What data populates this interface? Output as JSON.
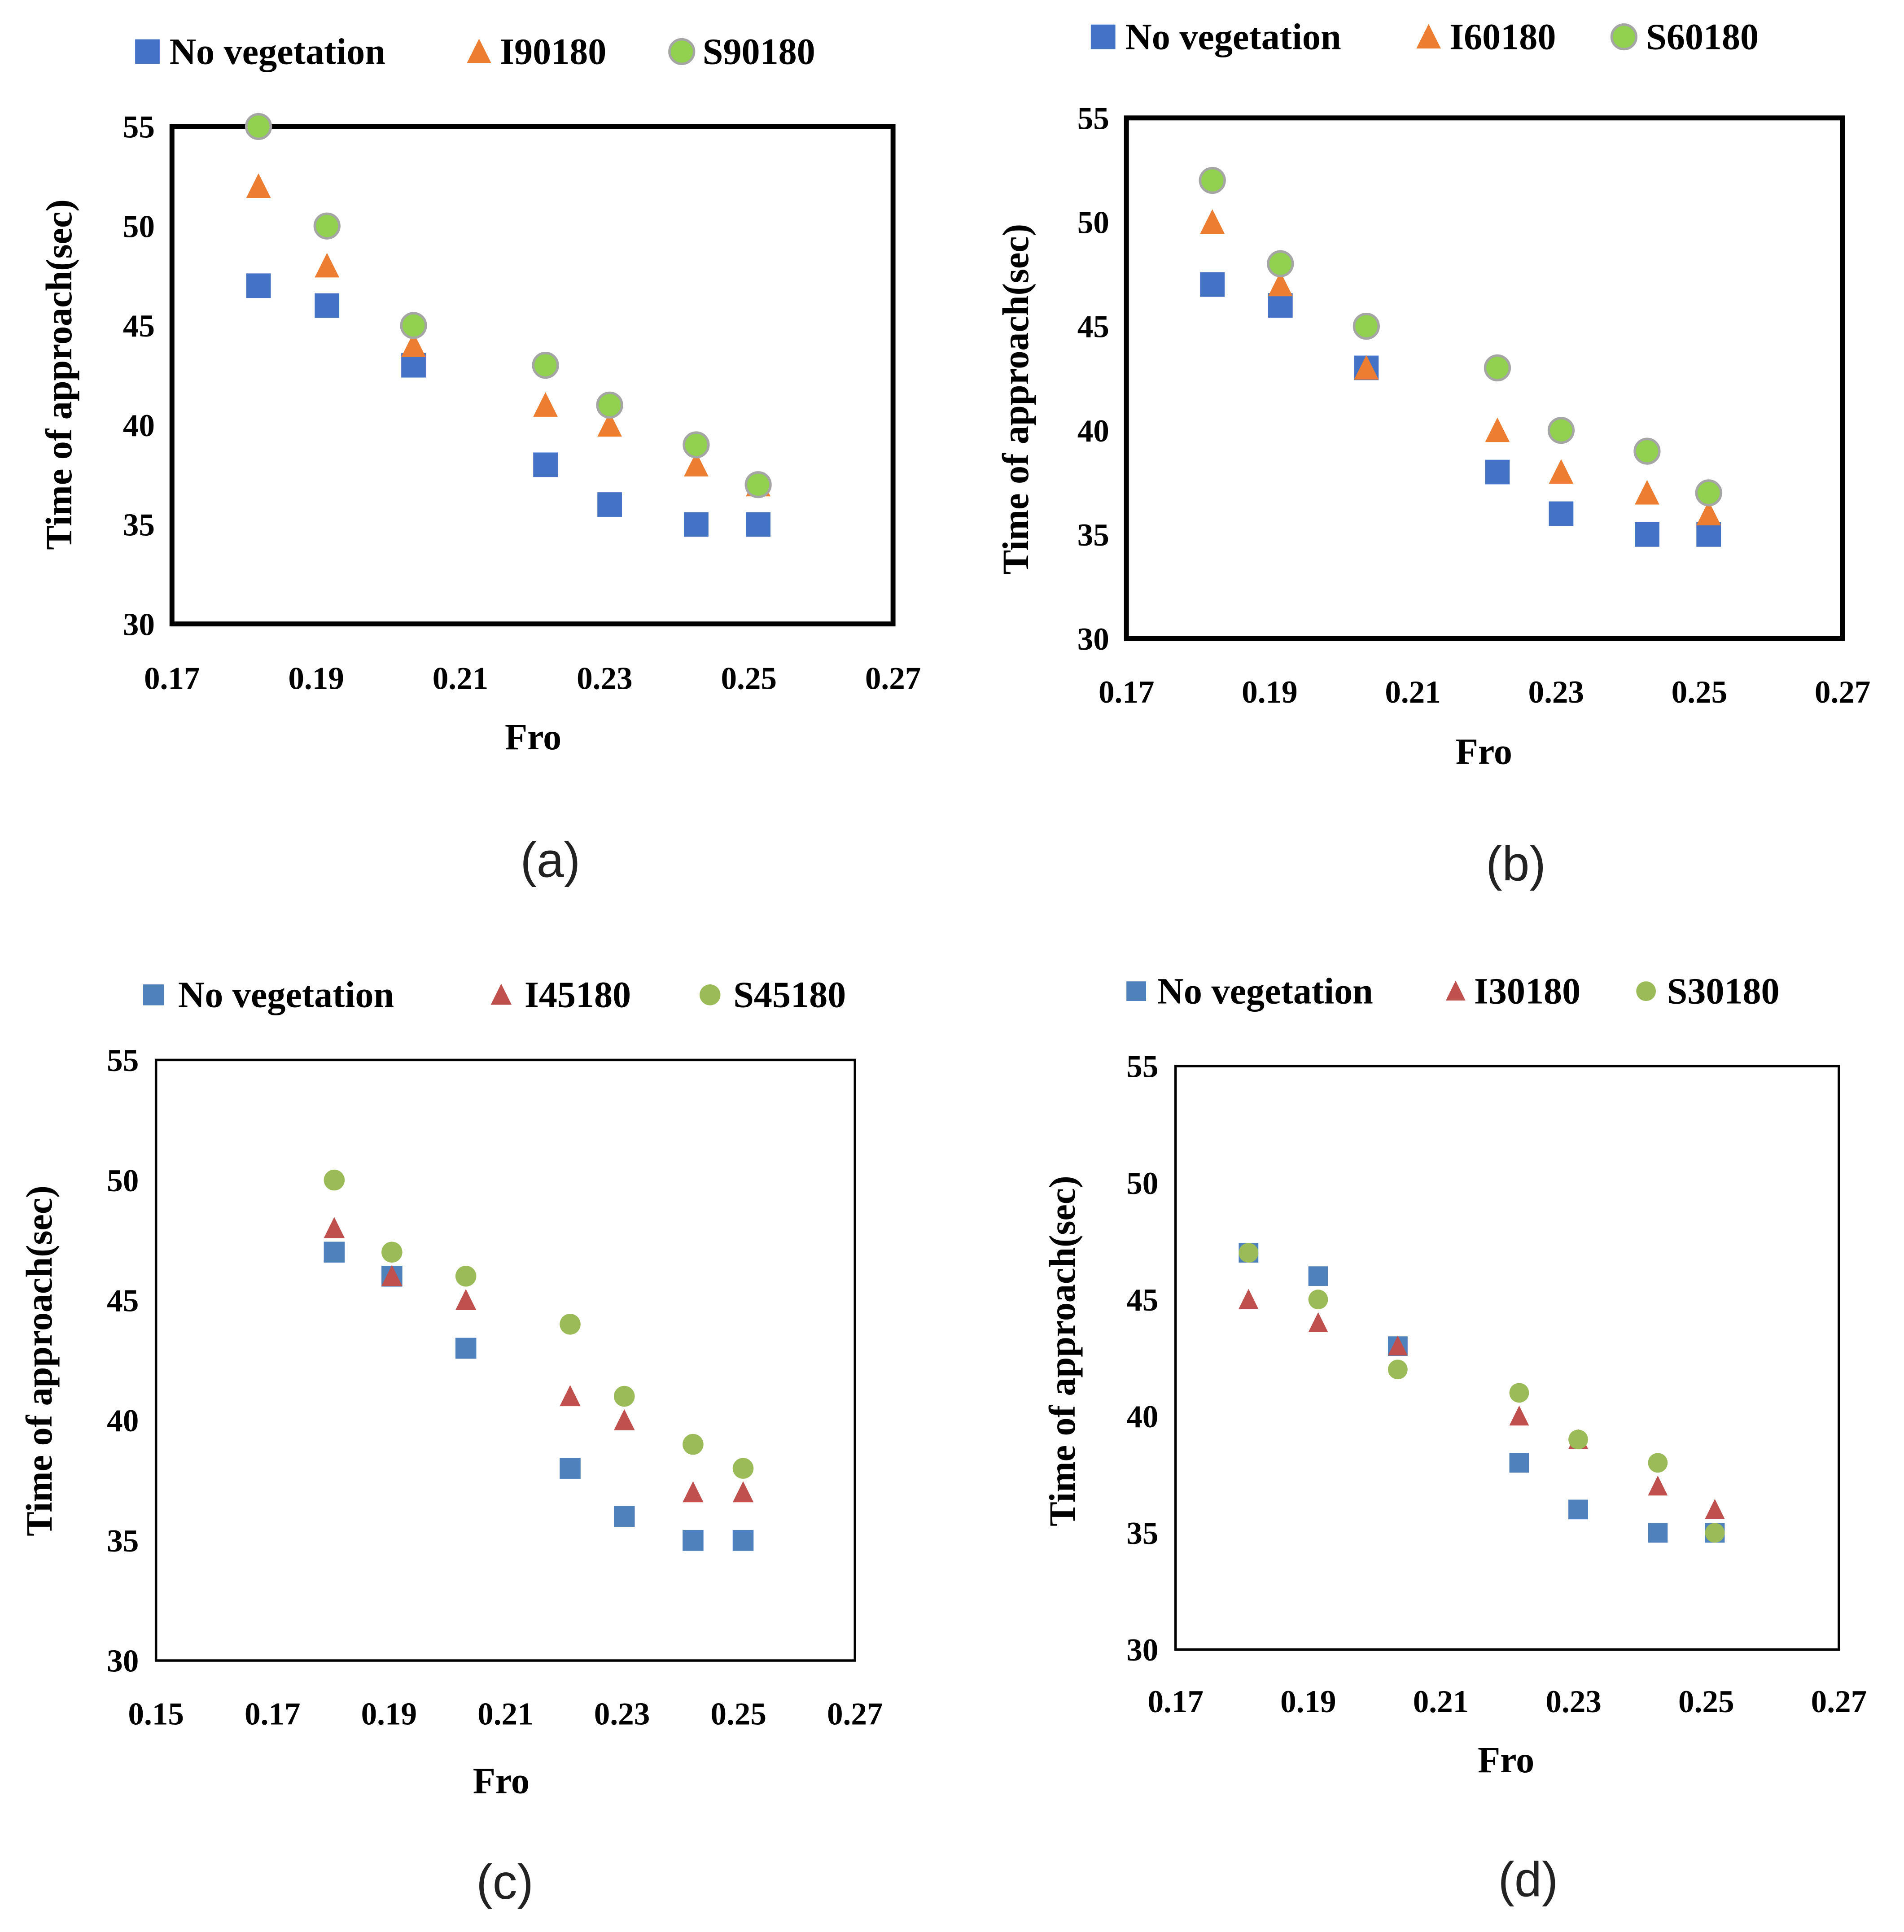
{
  "chart_data": [
    {
      "type": "scatter",
      "caption": "(a)",
      "xlabel": "Fro",
      "ylabel": "Time of approach(sec)",
      "xlim": [
        0.17,
        0.27
      ],
      "ylim": [
        30,
        55
      ],
      "xticks": [
        "0.17",
        "0.19",
        "0.21",
        "0.23",
        "0.25",
        "0.27"
      ],
      "yticks": [
        "30",
        "35",
        "40",
        "45",
        "50",
        "55"
      ],
      "xtick_values": [
        0.17,
        0.19,
        0.21,
        0.23,
        0.25,
        0.27
      ],
      "ytick_values": [
        30,
        35,
        40,
        45,
        50,
        55
      ],
      "x": [
        0.182,
        0.1915,
        0.2035,
        0.2218,
        0.2307,
        0.2427,
        0.2513
      ],
      "series": [
        {
          "name": "No vegetation",
          "marker": "square",
          "color": "#4472C4",
          "values": [
            47,
            46,
            43,
            38,
            36,
            35,
            35
          ]
        },
        {
          "name": "I90180",
          "marker": "triangle",
          "color": "#ED7D31",
          "values": [
            52,
            48,
            44,
            41,
            40,
            38,
            37
          ]
        },
        {
          "name": "S90180",
          "marker": "circle",
          "color": "#92D050",
          "values": [
            55,
            50,
            45,
            43,
            41,
            39,
            37
          ]
        }
      ],
      "legend": "top"
    },
    {
      "type": "scatter",
      "caption": "(b)",
      "xlabel": "Fro",
      "ylabel": "Time of approach(sec)",
      "xlim": [
        0.17,
        0.27
      ],
      "ylim": [
        30,
        55
      ],
      "xticks": [
        "0.17",
        "0.19",
        "0.21",
        "0.23",
        "0.25",
        "0.27"
      ],
      "yticks": [
        "30",
        "35",
        "40",
        "45",
        "50",
        "55"
      ],
      "xtick_values": [
        0.17,
        0.19,
        0.21,
        0.23,
        0.25,
        0.27
      ],
      "ytick_values": [
        30,
        35,
        40,
        45,
        50,
        55
      ],
      "x": [
        0.182,
        0.1915,
        0.2035,
        0.2218,
        0.2307,
        0.2427,
        0.2513
      ],
      "series": [
        {
          "name": "No vegetation",
          "marker": "square",
          "color": "#4472C4",
          "values": [
            47,
            46,
            43,
            38,
            36,
            35,
            35
          ]
        },
        {
          "name": "I60180",
          "marker": "triangle",
          "color": "#ED7D31",
          "values": [
            50,
            47,
            43,
            40,
            38,
            37,
            36
          ]
        },
        {
          "name": "S60180",
          "marker": "circle",
          "color": "#92D050",
          "values": [
            52,
            48,
            45,
            43,
            40,
            39,
            37
          ]
        }
      ],
      "legend": "top"
    },
    {
      "type": "scatter",
      "caption": "(c)",
      "xlabel": "Fro",
      "ylabel": "Time of approach(sec)",
      "xlim": [
        0.15,
        0.27
      ],
      "ylim": [
        30,
        55
      ],
      "xticks": [
        "0.15",
        "0.17",
        "0.19",
        "0.21",
        "0.23",
        "0.25",
        "0.27"
      ],
      "yticks": [
        "30",
        "35",
        "40",
        "45",
        "50",
        "55"
      ],
      "xtick_values": [
        0.15,
        0.17,
        0.19,
        0.21,
        0.23,
        0.25,
        0.27
      ],
      "ytick_values": [
        30,
        35,
        40,
        45,
        50,
        55
      ],
      "x": [
        0.1806,
        0.1905,
        0.2032,
        0.2211,
        0.2304,
        0.2422,
        0.2508
      ],
      "series": [
        {
          "name": "No vegetation",
          "marker": "square",
          "color": "#4F81BD",
          "values": [
            47,
            46,
            43,
            38,
            36,
            35,
            35
          ]
        },
        {
          "name": "I45180",
          "marker": "triangle",
          "color": "#C0504D",
          "values": [
            48,
            46,
            45,
            41,
            40,
            37,
            37
          ]
        },
        {
          "name": "S45180",
          "marker": "circle",
          "color": "#9BBB59",
          "values": [
            50,
            47,
            46,
            44,
            41,
            39,
            38
          ]
        }
      ],
      "legend": "top"
    },
    {
      "type": "scatter",
      "caption": "(d)",
      "xlabel": "Fro",
      "ylabel": "Time of approach(sec)",
      "xlim": [
        0.17,
        0.27
      ],
      "ylim": [
        30,
        55
      ],
      "xticks": [
        "0.17",
        "0.19",
        "0.21",
        "0.23",
        "0.25",
        "0.27"
      ],
      "yticks": [
        "30",
        "35",
        "40",
        "45",
        "50",
        "55"
      ],
      "xtick_values": [
        0.17,
        0.19,
        0.21,
        0.23,
        0.25,
        0.27
      ],
      "ytick_values": [
        30,
        35,
        40,
        45,
        50,
        55
      ],
      "x": [
        0.181,
        0.1915,
        0.2035,
        0.2218,
        0.2307,
        0.2427,
        0.2513
      ],
      "series": [
        {
          "name": "No vegetation",
          "marker": "square",
          "color": "#4F81BD",
          "values": [
            47,
            46,
            43,
            38,
            36,
            35,
            35
          ]
        },
        {
          "name": "I30180",
          "marker": "triangle",
          "color": "#C0504D",
          "values": [
            45,
            44,
            43,
            40,
            39,
            37,
            36
          ]
        },
        {
          "name": "S30180",
          "marker": "circle",
          "color": "#9BBB59",
          "values": [
            47,
            45,
            42,
            41,
            39,
            38,
            35
          ]
        }
      ],
      "legend": "top"
    }
  ]
}
